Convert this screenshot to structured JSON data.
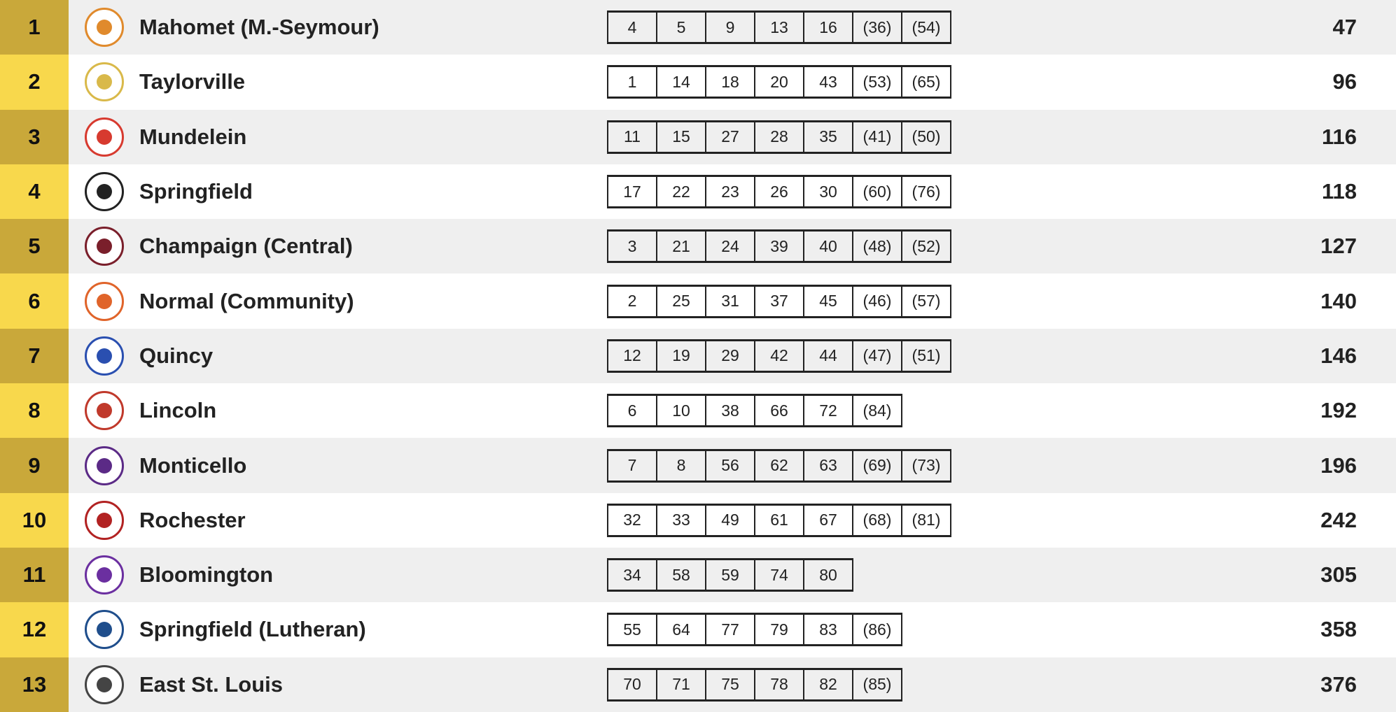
{
  "colors": {
    "rank_odd": "#c9a83a",
    "rank_even": "#f8d84c",
    "row_odd": "#efefef",
    "row_even": "#ffffff"
  },
  "teams": [
    {
      "rank": "1",
      "name": "Mahomet (M.-Seymour)",
      "logo": "mahomet-seymour-logo",
      "logo_color": "#e08a2c",
      "places": [
        "4",
        "5",
        "9",
        "13",
        "16",
        "(36)",
        "(54)"
      ],
      "score": "47"
    },
    {
      "rank": "2",
      "name": "Taylorville",
      "logo": "taylorville-tornado-logo",
      "logo_color": "#d9b94a",
      "places": [
        "1",
        "14",
        "18",
        "20",
        "43",
        "(53)",
        "(65)"
      ],
      "score": "96"
    },
    {
      "rank": "3",
      "name": "Mundelein",
      "logo": "mundelein-mustang-logo",
      "logo_color": "#d73a2f",
      "places": [
        "11",
        "15",
        "27",
        "28",
        "35",
        "(41)",
        "(50)"
      ],
      "score": "116"
    },
    {
      "rank": "4",
      "name": "Springfield",
      "logo": "springfield-logo",
      "logo_color": "#222222",
      "places": [
        "17",
        "22",
        "23",
        "26",
        "30",
        "(60)",
        "(76)"
      ],
      "score": "118"
    },
    {
      "rank": "5",
      "name": "Champaign (Central)",
      "logo": "champaign-central-logo",
      "logo_color": "#7a1f2b",
      "places": [
        "3",
        "21",
        "24",
        "39",
        "40",
        "(48)",
        "(52)"
      ],
      "score": "127"
    },
    {
      "rank": "6",
      "name": "Normal (Community)",
      "logo": "normal-community-logo",
      "logo_color": "#e0642a",
      "places": [
        "2",
        "25",
        "31",
        "37",
        "45",
        "(46)",
        "(57)"
      ],
      "score": "140"
    },
    {
      "rank": "7",
      "name": "Quincy",
      "logo": "quincy-blue-devil-logo",
      "logo_color": "#2a4fb0",
      "places": [
        "12",
        "19",
        "29",
        "42",
        "44",
        "(47)",
        "(51)"
      ],
      "score": "146"
    },
    {
      "rank": "8",
      "name": "Lincoln",
      "logo": "lincoln-railsplitter-logo",
      "logo_color": "#c0392b",
      "places": [
        "6",
        "10",
        "38",
        "66",
        "72",
        "(84)"
      ],
      "score": "192"
    },
    {
      "rank": "9",
      "name": "Monticello",
      "logo": "monticello-sage-logo",
      "logo_color": "#5b2a86",
      "places": [
        "7",
        "8",
        "56",
        "62",
        "63",
        "(69)",
        "(73)"
      ],
      "score": "196"
    },
    {
      "rank": "10",
      "name": "Rochester",
      "logo": "rochester-rockets-logo",
      "logo_color": "#b22222",
      "places": [
        "32",
        "33",
        "49",
        "61",
        "67",
        "(68)",
        "(81)"
      ],
      "score": "242"
    },
    {
      "rank": "11",
      "name": "Bloomington",
      "logo": "bloomington-bhs-logo",
      "logo_color": "#6b2fa0",
      "places": [
        "34",
        "58",
        "59",
        "74",
        "80"
      ],
      "score": "305"
    },
    {
      "rank": "12",
      "name": "Springfield (Lutheran)",
      "logo": "springfield-lutheran-shield-logo",
      "logo_color": "#1f4e8c",
      "places": [
        "55",
        "64",
        "77",
        "79",
        "83",
        "(86)"
      ],
      "score": "358"
    },
    {
      "rank": "13",
      "name": "East St. Louis",
      "logo": "east-st-louis-flyers-logo",
      "logo_color": "#444444",
      "places": [
        "70",
        "71",
        "75",
        "78",
        "82",
        "(85)"
      ],
      "score": "376"
    }
  ]
}
